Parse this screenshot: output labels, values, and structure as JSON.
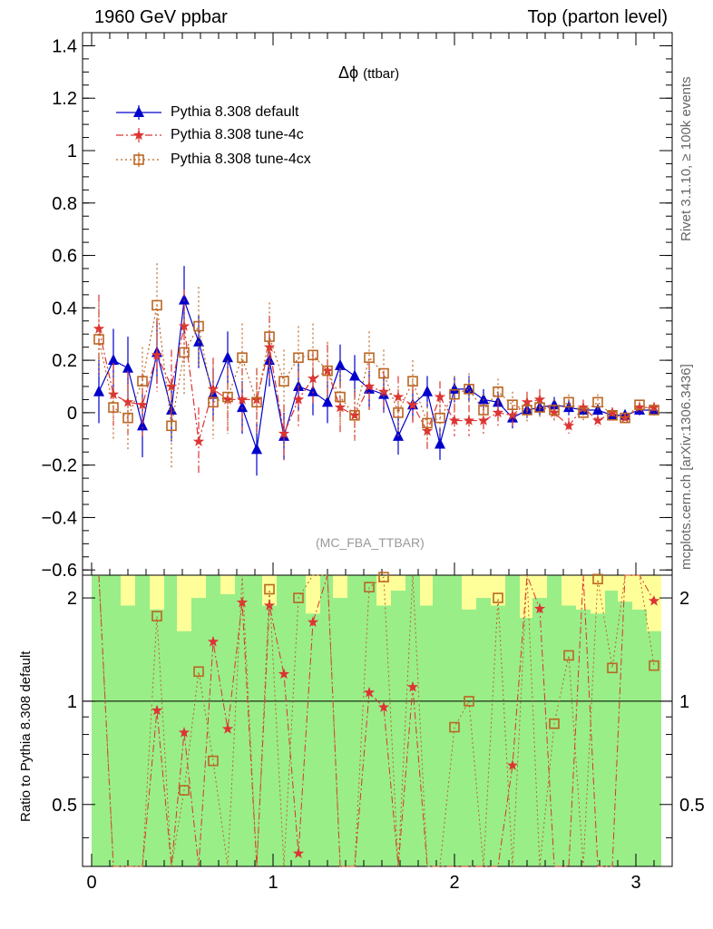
{
  "header": {
    "left": "1960 GeV ppbar",
    "right": "Top (parton level)"
  },
  "side": {
    "rivet": "Rivet 3.1.10, ≥ 100k events",
    "mcplots": "mcplots.cern.ch [arXiv:1306.3436]"
  },
  "observable": {
    "symbol": "Δϕ",
    "suffix": "(ttbar)"
  },
  "watermark": "(MC_FBA_TTBAR)",
  "ratio_ylabel": "Ratio to Pythia 8.308 default",
  "colors": {
    "default": "#0000cc",
    "tune4c": "#dd3333",
    "tune4cx": "#bb6622",
    "band_inner": "#99ee88",
    "band_outer": "#ffff99"
  },
  "chart_data": [
    {
      "type": "line",
      "title": "",
      "xlabel": "",
      "ylabel": "",
      "xlim": [
        -0.05,
        3.2
      ],
      "ylim": [
        -0.62,
        1.45
      ],
      "x_ticks": [
        0,
        1,
        2,
        3
      ],
      "y_ticks": [
        -0.6,
        -0.4,
        -0.2,
        0,
        0.2,
        0.4,
        0.6,
        0.8,
        1,
        1.2,
        1.4
      ],
      "y_tick_labels": [
        "−0.6",
        "−0.4",
        "−0.2",
        "0",
        "0.2",
        "0.4",
        "0.6",
        "0.8",
        "1",
        "1.2",
        "1.4"
      ],
      "legend_position": "top-left",
      "x": [
        0.04,
        0.12,
        0.2,
        0.28,
        0.36,
        0.44,
        0.51,
        0.59,
        0.67,
        0.75,
        0.83,
        0.91,
        0.98,
        1.06,
        1.14,
        1.22,
        1.3,
        1.37,
        1.45,
        1.53,
        1.61,
        1.69,
        1.77,
        1.85,
        1.92,
        2.0,
        2.08,
        2.16,
        2.24,
        2.32,
        2.4,
        2.47,
        2.55,
        2.63,
        2.71,
        2.79,
        2.87,
        2.94,
        3.02,
        3.1
      ],
      "series": [
        {
          "name": "Pythia 8.308 default",
          "marker": "triangle",
          "values": [
            0.08,
            0.2,
            0.17,
            -0.05,
            0.23,
            0.01,
            0.43,
            0.27,
            0.07,
            0.21,
            0.02,
            -0.14,
            0.2,
            -0.09,
            0.1,
            0.08,
            0.04,
            0.18,
            0.14,
            0.09,
            0.07,
            -0.09,
            0.03,
            0.08,
            -0.12,
            0.09,
            0.09,
            0.05,
            0.04,
            -0.02,
            0.01,
            0.02,
            0.03,
            0.02,
            0.01,
            0.01,
            -0.01,
            -0.01,
            0.01,
            0.01
          ],
          "errors": [
            0.12,
            0.12,
            0.12,
            0.12,
            0.12,
            0.12,
            0.13,
            0.1,
            0.1,
            0.1,
            0.1,
            0.1,
            0.1,
            0.09,
            0.09,
            0.09,
            0.08,
            0.08,
            0.08,
            0.07,
            0.07,
            0.07,
            0.06,
            0.06,
            0.06,
            0.05,
            0.05,
            0.04,
            0.04,
            0.04,
            0.03,
            0.03,
            0.03,
            0.03,
            0.02,
            0.02,
            0.02,
            0.02,
            0.02,
            0.02
          ]
        },
        {
          "name": "Pythia 8.308 tune-4c",
          "marker": "star",
          "values": [
            0.32,
            0.07,
            0.04,
            0.03,
            0.22,
            0.1,
            0.33,
            -0.11,
            0.09,
            0.05,
            0.05,
            0.05,
            0.25,
            -0.08,
            0.05,
            0.13,
            0.16,
            0.02,
            -0.01,
            0.1,
            0.08,
            0.06,
            0.03,
            -0.07,
            0.06,
            -0.03,
            -0.03,
            -0.03,
            0.0,
            -0.01,
            0.04,
            0.05,
            0.0,
            -0.05,
            0.02,
            -0.03,
            0.0,
            -0.02,
            0.02,
            0.02
          ],
          "errors": [
            0.13,
            0.12,
            0.12,
            0.12,
            0.14,
            0.14,
            0.14,
            0.13,
            0.12,
            0.12,
            0.12,
            0.12,
            0.12,
            0.11,
            0.11,
            0.1,
            0.1,
            0.1,
            0.09,
            0.09,
            0.08,
            0.08,
            0.07,
            0.07,
            0.06,
            0.06,
            0.06,
            0.05,
            0.05,
            0.04,
            0.04,
            0.04,
            0.03,
            0.03,
            0.03,
            0.02,
            0.02,
            0.02,
            0.02,
            0.02
          ]
        },
        {
          "name": "Pythia 8.308 tune-4cx",
          "marker": "open-square",
          "values": [
            0.28,
            0.02,
            -0.02,
            0.12,
            0.41,
            -0.05,
            0.23,
            0.33,
            0.04,
            0.06,
            0.21,
            0.04,
            0.29,
            0.12,
            0.21,
            0.22,
            0.16,
            0.06,
            -0.01,
            0.21,
            0.15,
            0.0,
            0.12,
            -0.04,
            -0.02,
            0.07,
            0.09,
            0.01,
            0.08,
            0.03,
            0.01,
            0.02,
            0.01,
            0.04,
            0.0,
            0.04,
            -0.01,
            -0.02,
            0.03,
            0.01
          ],
          "errors": [
            0.14,
            0.13,
            0.13,
            0.13,
            0.16,
            0.16,
            0.16,
            0.15,
            0.14,
            0.14,
            0.13,
            0.13,
            0.13,
            0.12,
            0.12,
            0.12,
            0.11,
            0.11,
            0.1,
            0.1,
            0.09,
            0.09,
            0.08,
            0.08,
            0.07,
            0.07,
            0.06,
            0.06,
            0.05,
            0.05,
            0.05,
            0.04,
            0.04,
            0.03,
            0.03,
            0.03,
            0.02,
            0.02,
            0.02,
            0.02
          ]
        }
      ]
    },
    {
      "type": "line",
      "title": "",
      "xlabel": "",
      "ylabel": "Ratio to Pythia 8.308 default",
      "xlim": [
        -0.05,
        3.2
      ],
      "ylim": [
        0.33,
        2.33
      ],
      "x_ticks": [
        0,
        1,
        2,
        3
      ],
      "y_ticks": [
        0.5,
        1,
        2
      ],
      "y_tick_labels": [
        "0.5",
        "1",
        "2"
      ],
      "reference_line": 1,
      "x": [
        0.04,
        0.12,
        0.2,
        0.28,
        0.36,
        0.44,
        0.51,
        0.59,
        0.67,
        0.75,
        0.83,
        0.91,
        0.98,
        1.06,
        1.14,
        1.22,
        1.3,
        1.37,
        1.45,
        1.53,
        1.61,
        1.69,
        1.77,
        1.85,
        1.92,
        2.0,
        2.08,
        2.16,
        2.24,
        2.32,
        2.4,
        2.47,
        2.55,
        2.63,
        2.71,
        2.79,
        2.87,
        2.94,
        3.02,
        3.1
      ],
      "band_inner_upper": [
        2.33,
        2.33,
        1.9,
        2.33,
        1.85,
        2.33,
        1.6,
        2.0,
        2.33,
        2.05,
        2.33,
        2.33,
        1.9,
        2.33,
        2.33,
        1.8,
        2.33,
        2.0,
        2.33,
        2.33,
        1.9,
        2.1,
        2.33,
        1.9,
        2.33,
        2.33,
        1.85,
        2.0,
        1.9,
        2.33,
        1.75,
        2.0,
        2.33,
        1.9,
        1.85,
        1.8,
        2.1,
        1.95,
        1.85,
        1.6
      ],
      "band_outer_upper": [
        2.33,
        2.33,
        2.33,
        2.33,
        2.33,
        2.33,
        2.33,
        2.33,
        2.33,
        2.33,
        2.33,
        2.33,
        2.33,
        2.33,
        2.33,
        2.33,
        2.33,
        2.33,
        2.33,
        2.33,
        2.33,
        2.33,
        2.33,
        2.33,
        2.33,
        2.33,
        2.33,
        2.33,
        2.33,
        2.33,
        2.33,
        2.33,
        2.33,
        2.33,
        2.33,
        2.33,
        2.33,
        2.33,
        2.33,
        2.33
      ],
      "series": [
        {
          "name": "Pythia 8.308 tune-4c",
          "marker": "star",
          "values": [
            2.33,
            0.33,
            0.33,
            0.33,
            0.94,
            0.33,
            0.81,
            0.33,
            1.49,
            0.83,
            1.94,
            0.33,
            1.9,
            1.2,
            0.36,
            1.7,
            2.33,
            0.33,
            0.33,
            1.06,
            0.96,
            0.33,
            1.1,
            0.33,
            0.33,
            0.33,
            0.33,
            0.33,
            0.33,
            0.65,
            2.33,
            1.86,
            0.33,
            0.33,
            2.33,
            0.33,
            0.33,
            2.33,
            2.33,
            1.96
          ]
        },
        {
          "name": "Pythia 8.308 tune-4cx",
          "marker": "open-square",
          "values": [
            2.33,
            0.33,
            0.33,
            0.33,
            1.77,
            0.33,
            0.55,
            1.22,
            0.67,
            0.33,
            2.33,
            0.33,
            2.12,
            0.33,
            2.0,
            2.33,
            2.33,
            0.33,
            0.33,
            2.15,
            2.3,
            0.33,
            2.33,
            0.33,
            0.33,
            0.84,
            1.0,
            0.33,
            2.0,
            0.33,
            2.33,
            0.33,
            0.86,
            1.36,
            0.33,
            2.27,
            1.25,
            2.33,
            2.33,
            1.27
          ]
        }
      ]
    }
  ]
}
